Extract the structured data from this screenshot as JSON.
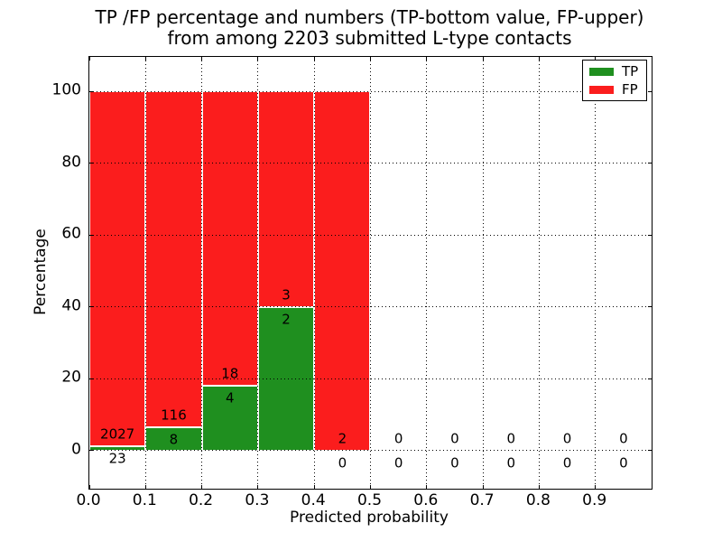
{
  "chart_data": {
    "type": "bar",
    "stacked": true,
    "title": "TP /FP percentage and numbers (TP-bottom value, FP-upper)",
    "subtitle": "from among 2203 submitted L-type contacts",
    "xlabel": "Predicted probability",
    "ylabel": "Percentage",
    "total_contacts": 2203,
    "xlim": [
      0.0,
      1.0
    ],
    "ylim": [
      -10.6,
      109.6
    ],
    "xticks": [
      0.0,
      0.1,
      0.2,
      0.3,
      0.4,
      0.5,
      0.6,
      0.7,
      0.8,
      0.9
    ],
    "yticks": [
      0,
      20,
      40,
      60,
      80,
      100
    ],
    "grid": "dotted-black",
    "colors": {
      "tp": "#1f8f1f",
      "fp": "#fb1d1d",
      "bar_edge": "#ffffff",
      "grid": "#000000"
    },
    "legend": {
      "position": "upper-right",
      "entries": [
        {
          "label": "TP",
          "color": "#1f8f1f"
        },
        {
          "label": "FP",
          "color": "#fb1d1d"
        }
      ]
    },
    "bins": [
      {
        "x0": 0.0,
        "x1": 0.1,
        "tp": 23,
        "fp": 2027,
        "tp_pct": 1.12,
        "fp_pct": 98.88
      },
      {
        "x0": 0.1,
        "x1": 0.2,
        "tp": 8,
        "fp": 116,
        "tp_pct": 6.45,
        "fp_pct": 93.55
      },
      {
        "x0": 0.2,
        "x1": 0.3,
        "tp": 4,
        "fp": 18,
        "tp_pct": 18.18,
        "fp_pct": 81.82
      },
      {
        "x0": 0.3,
        "x1": 0.4,
        "tp": 2,
        "fp": 3,
        "tp_pct": 40.0,
        "fp_pct": 60.0
      },
      {
        "x0": 0.4,
        "x1": 0.5,
        "tp": 0,
        "fp": 2,
        "tp_pct": 0.0,
        "fp_pct": 100.0
      },
      {
        "x0": 0.5,
        "x1": 0.6,
        "tp": 0,
        "fp": 0,
        "tp_pct": 0.0,
        "fp_pct": 0.0
      },
      {
        "x0": 0.6,
        "x1": 0.7,
        "tp": 0,
        "fp": 0,
        "tp_pct": 0.0,
        "fp_pct": 0.0
      },
      {
        "x0": 0.7,
        "x1": 0.8,
        "tp": 0,
        "fp": 0,
        "tp_pct": 0.0,
        "fp_pct": 0.0
      },
      {
        "x0": 0.8,
        "x1": 0.9,
        "tp": 0,
        "fp": 0,
        "tp_pct": 0.0,
        "fp_pct": 0.0
      },
      {
        "x0": 0.9,
        "x1": 1.0,
        "tp": 0,
        "fp": 0,
        "tp_pct": 0.0,
        "fp_pct": 0.0
      }
    ]
  }
}
